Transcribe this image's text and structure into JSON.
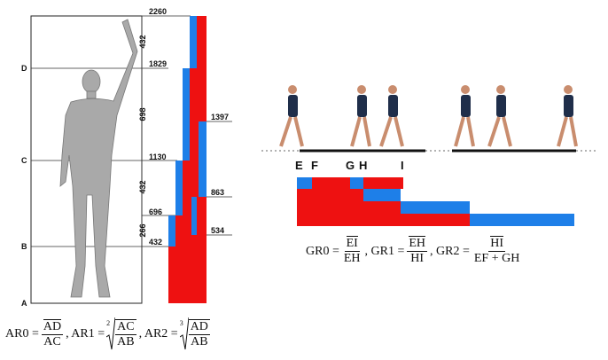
{
  "points": [
    "A",
    "B",
    "C",
    "D"
  ],
  "heights": [
    2260,
    1829,
    1130,
    696,
    432
  ],
  "segments": [
    432,
    698,
    432,
    266
  ],
  "right_heights": [
    1397,
    863,
    534
  ],
  "gait_events": [
    "E",
    "F",
    "G",
    "H",
    "I"
  ],
  "ar_formula": [
    {
      "name": "AR0 =",
      "num": "AD",
      "den": "AC"
    },
    {
      "name": ", AR1 =",
      "root": "2",
      "num": "AC",
      "den": "AB"
    },
    {
      "name": ", AR2 =",
      "root": "3",
      "num": "AD",
      "den": "AB"
    }
  ],
  "gr_formula": [
    {
      "name": "GR0 =",
      "num": "EI",
      "den": "EH"
    },
    {
      "name": ", GR1 =",
      "num": "EH",
      "den": "HI"
    },
    {
      "name": ", GR2 =",
      "num": "HI",
      "den": "EF + GH"
    }
  ]
}
